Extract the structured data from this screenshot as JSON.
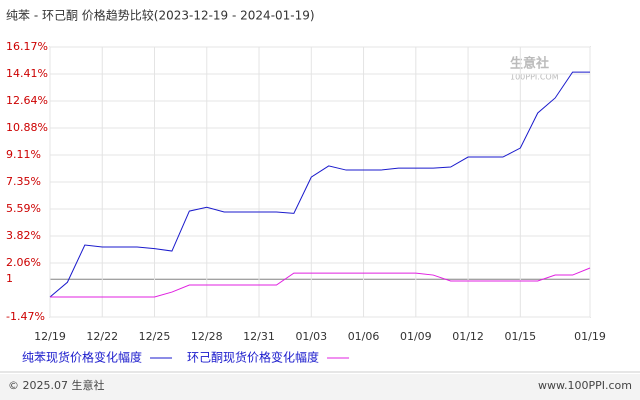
{
  "chart_data": {
    "type": "line",
    "title": "纯苯 - 环己酮 价格趋势比较(2023-12-19 - 2024-01-19)",
    "categories": [
      "12/19",
      null,
      null,
      "12/22",
      null,
      null,
      "12/25",
      null,
      null,
      "12/28",
      null,
      null,
      "12/31",
      null,
      null,
      "01/03",
      null,
      null,
      "01/06",
      null,
      null,
      "01/09",
      null,
      null,
      "01/12",
      null,
      null,
      "01/15",
      null,
      null,
      null,
      "01/19"
    ],
    "series": [
      {
        "name": "纯苯现货价格变化幅度",
        "color": "#1a1acc",
        "values": [
          -0.16,
          0.8,
          3.23,
          3.1,
          3.1,
          3.1,
          3.0,
          2.84,
          5.45,
          5.7,
          5.39,
          5.39,
          5.39,
          5.39,
          5.3,
          7.67,
          8.4,
          8.13,
          8.13,
          8.13,
          8.26,
          8.26,
          8.26,
          8.33,
          8.98,
          8.98,
          8.98,
          9.57,
          11.86,
          12.84,
          14.53,
          14.53
        ]
      },
      {
        "name": "环己酮现货价格变化幅度",
        "color": "#e020e0",
        "values": [
          -0.16,
          -0.16,
          -0.16,
          -0.16,
          -0.16,
          -0.16,
          -0.16,
          0.16,
          0.62,
          0.62,
          0.62,
          0.62,
          0.62,
          0.62,
          1.4,
          1.4,
          1.4,
          1.4,
          1.4,
          1.4,
          1.4,
          1.4,
          1.27,
          0.88,
          0.88,
          0.88,
          0.88,
          0.88,
          0.88,
          1.27,
          1.27,
          1.73
        ]
      }
    ],
    "ylim": [
      -1.47,
      16.17
    ],
    "yticks": [
      {
        "value": 16.17,
        "label": "16.17%"
      },
      {
        "value": 14.41,
        "label": "14.41%"
      },
      {
        "value": 12.64,
        "label": "12.64%"
      },
      {
        "value": 10.88,
        "label": "10.88%"
      },
      {
        "value": 9.11,
        "label": "9.11%"
      },
      {
        "value": 7.35,
        "label": "7.35%"
      },
      {
        "value": 5.59,
        "label": "5.59%"
      },
      {
        "value": 3.82,
        "label": "3.82%"
      },
      {
        "value": 2.06,
        "label": "2.06%"
      },
      1,
      {
        "value": -1.47,
        "label": "-1.47%"
      }
    ],
    "baseline": 1,
    "grid": true,
    "watermark": [
      "生意社",
      "100PPI.COM"
    ],
    "footer_left": "© 2025.07 生意社",
    "footer_right": "www.100PPI.com"
  }
}
